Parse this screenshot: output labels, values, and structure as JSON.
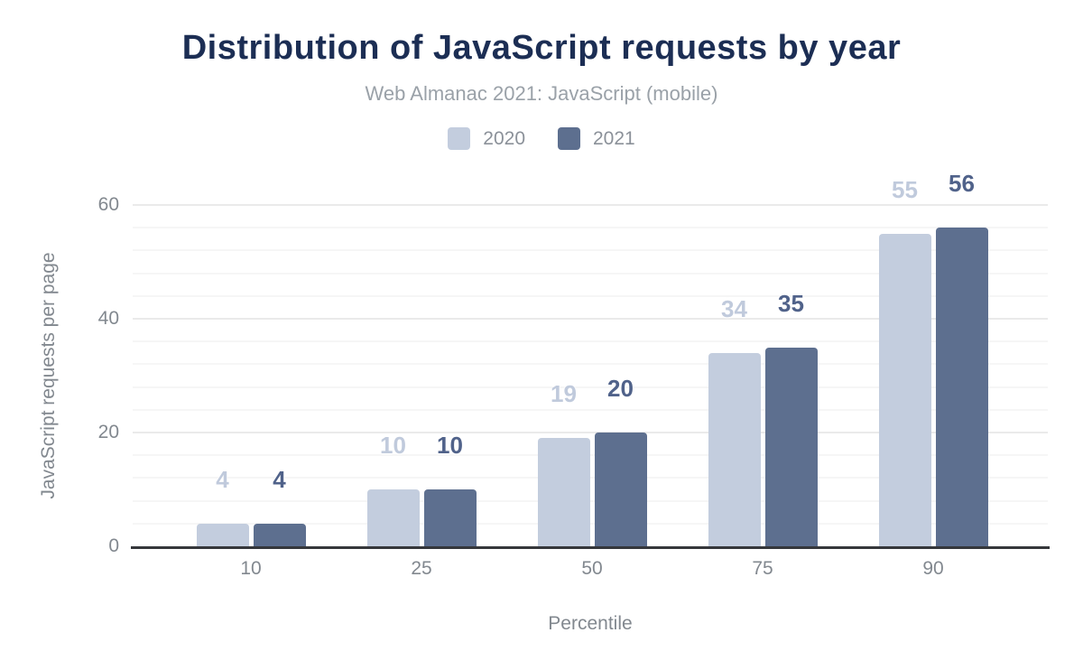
{
  "header": {
    "title": "Distribution of JavaScript requests by year",
    "subtitle": "Web Almanac 2021: JavaScript (mobile)"
  },
  "chart_data": {
    "type": "bar",
    "categories": [
      "10",
      "25",
      "50",
      "75",
      "90"
    ],
    "series": [
      {
        "name": "2020",
        "color": "#c3cdde",
        "label_color": "#c0cadc",
        "values": [
          4,
          10,
          19,
          34,
          55
        ]
      },
      {
        "name": "2021",
        "color": "#5d6f8f",
        "label_color": "#50628a",
        "values": [
          4,
          10,
          20,
          35,
          56
        ]
      }
    ],
    "title": "Distribution of JavaScript requests by year",
    "subtitle": "Web Almanac 2021: JavaScript (mobile)",
    "xlabel": "Percentile",
    "ylabel": "JavaScript requests per page",
    "ylim": [
      0,
      60
    ],
    "yticks": [
      0,
      20,
      40,
      60
    ],
    "minor_grid_step": 4,
    "grid": true,
    "legend_position": "top",
    "data_labels": true
  },
  "colors": {
    "title": "#1c2e54",
    "subtitle": "#9aa1a8",
    "legend_text": "#8b9199",
    "axis_text": "#82888f",
    "axis_line": "#35373b",
    "grid_major": "#eaeaea",
    "grid_minor": "#f6f6f6",
    "background": "#ffffff"
  }
}
